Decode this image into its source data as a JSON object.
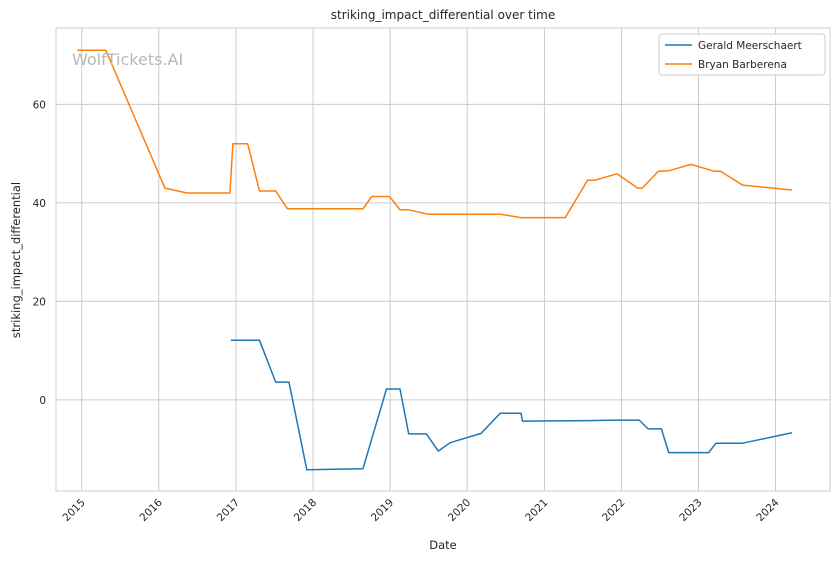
{
  "chart_data": {
    "type": "line",
    "title": "striking_impact_differential over time",
    "xlabel": "Date",
    "ylabel": "striking_impact_differential",
    "watermark": "WolfTickets.AI",
    "x_ticks": [
      "2015",
      "2016",
      "2017",
      "2018",
      "2019",
      "2020",
      "2021",
      "2022",
      "2023",
      "2024"
    ],
    "y_ticks": [
      0,
      20,
      40,
      60
    ],
    "xlim": [
      "2014-09-01",
      "2024-09-15"
    ],
    "ylim": [
      -18.5,
      75.5
    ],
    "grid": true,
    "legend_position": "top-right",
    "series": [
      {
        "name": "Gerald Meerschaert",
        "color": "#1f77b4",
        "points": [
          [
            "2016-12-10",
            12.1
          ],
          [
            "2017-04-22",
            12.1
          ],
          [
            "2017-07-08",
            3.6
          ],
          [
            "2017-09-09",
            3.6
          ],
          [
            "2017-12-02",
            -14.2
          ],
          [
            "2018-08-25",
            -14.0
          ],
          [
            "2018-12-15",
            2.2
          ],
          [
            "2019-02-17",
            2.2
          ],
          [
            "2019-03-30",
            -6.9
          ],
          [
            "2019-06-22",
            -6.9
          ],
          [
            "2019-08-17",
            -10.4
          ],
          [
            "2019-10-12",
            -8.7
          ],
          [
            "2020-03-07",
            -6.8
          ],
          [
            "2020-06-06",
            -2.7
          ],
          [
            "2020-09-12",
            -2.7
          ],
          [
            "2020-09-19",
            -4.3
          ],
          [
            "2021-07-31",
            -4.2
          ],
          [
            "2021-12-11",
            -4.1
          ],
          [
            "2022-03-26",
            -4.1
          ],
          [
            "2022-05-07",
            -5.9
          ],
          [
            "2022-07-09",
            -5.9
          ],
          [
            "2022-08-13",
            -10.7
          ],
          [
            "2023-02-18",
            -10.7
          ],
          [
            "2023-03-25",
            -8.8
          ],
          [
            "2023-07-29",
            -8.8
          ],
          [
            "2024-03-16",
            -6.7
          ]
        ]
      },
      {
        "name": "Bryan Barberena",
        "color": "#ff7f0e",
        "points": [
          [
            "2014-12-13",
            71.0
          ],
          [
            "2015-04-25",
            71.0
          ],
          [
            "2016-01-30",
            43.0
          ],
          [
            "2016-05-14",
            42.0
          ],
          [
            "2016-12-03",
            42.0
          ],
          [
            "2016-12-17",
            52.0
          ],
          [
            "2017-02-25",
            52.0
          ],
          [
            "2017-04-22",
            42.4
          ],
          [
            "2017-07-08",
            42.4
          ],
          [
            "2017-09-02",
            38.8
          ],
          [
            "2018-08-25",
            38.8
          ],
          [
            "2018-10-06",
            41.3
          ],
          [
            "2018-12-29",
            41.3
          ],
          [
            "2019-02-17",
            38.6
          ],
          [
            "2019-03-30",
            38.6
          ],
          [
            "2019-06-29",
            37.7
          ],
          [
            "2020-06-06",
            37.7
          ],
          [
            "2020-09-12",
            37.0
          ],
          [
            "2021-04-10",
            37.0
          ],
          [
            "2021-07-24",
            44.6
          ],
          [
            "2021-08-28",
            44.6
          ],
          [
            "2021-12-11",
            45.9
          ],
          [
            "2022-03-19",
            43.0
          ],
          [
            "2022-04-09",
            43.0
          ],
          [
            "2022-06-25",
            46.4
          ],
          [
            "2022-08-13",
            46.5
          ],
          [
            "2022-11-26",
            47.8
          ],
          [
            "2023-03-18",
            46.4
          ],
          [
            "2023-04-15",
            46.4
          ],
          [
            "2023-07-29",
            43.6
          ],
          [
            "2024-03-16",
            42.6
          ]
        ]
      }
    ]
  }
}
